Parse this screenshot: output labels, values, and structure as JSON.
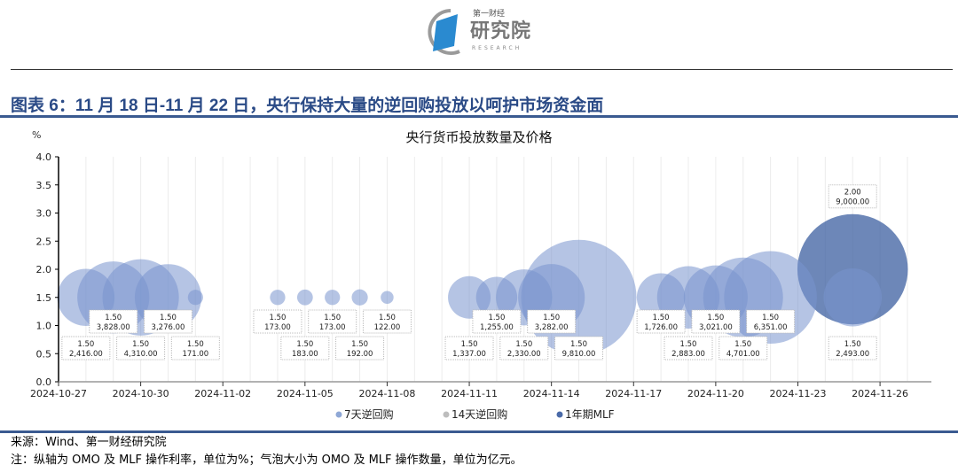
{
  "logo": {
    "top": "第一财经",
    "main": "研究院",
    "sub": "RESEARCH"
  },
  "figure_title": "图表 6：11 月 18 日-11 月 22 日，央行保持大量的逆回购投放以呵护市场资金面",
  "source": "来源：Wind、第一财经研究院",
  "note": "注：纵轴为 OMO 及 MLF 操作利率，单位为%；气泡大小为 OMO 及 MLF 操作数量，单位为亿元。",
  "chart_data": {
    "type": "bubble",
    "title": "央行货币投放数量及价格",
    "ylabel": "%",
    "ylim": [
      0,
      4.0
    ],
    "yticks": [
      "0.0",
      "0.5",
      "1.0",
      "1.5",
      "2.0",
      "2.5",
      "3.0",
      "3.5",
      "4.0"
    ],
    "xlim": [
      "2024-10-27",
      "2024-11-28"
    ],
    "xticks": [
      "2024-10-27",
      "2024-10-30",
      "2024-11-02",
      "2024-11-05",
      "2024-11-08",
      "2024-11-11",
      "2024-11-14",
      "2024-11-17",
      "2024-11-20",
      "2024-11-23",
      "2024-11-26"
    ],
    "grid": "vertical",
    "legend_position": "bottom",
    "series": [
      {
        "name": "7天逆回购",
        "color": "#8fa8d6",
        "points": [
          {
            "x": "2024-10-28",
            "y": 1.5,
            "size": 2416,
            "label": [
              "1.50",
              "2,416.00"
            ]
          },
          {
            "x": "2024-10-29",
            "y": 1.5,
            "size": 3828,
            "label": [
              "1.50",
              "3,828.00"
            ]
          },
          {
            "x": "2024-10-30",
            "y": 1.5,
            "size": 4310,
            "label": [
              "1.50",
              "4,310.00"
            ]
          },
          {
            "x": "2024-10-31",
            "y": 1.5,
            "size": 3276,
            "label": [
              "1.50",
              "3,276.00"
            ]
          },
          {
            "x": "2024-11-01",
            "y": 1.5,
            "size": 171,
            "label": [
              "1.50",
              "171.00"
            ]
          },
          {
            "x": "2024-11-04",
            "y": 1.5,
            "size": 173,
            "label": [
              "1.50",
              "173.00"
            ]
          },
          {
            "x": "2024-11-05",
            "y": 1.5,
            "size": 183,
            "label": [
              "1.50",
              "183.00"
            ]
          },
          {
            "x": "2024-11-06",
            "y": 1.5,
            "size": 173,
            "label": [
              "1.50",
              "173.00"
            ]
          },
          {
            "x": "2024-11-07",
            "y": 1.5,
            "size": 192,
            "label": [
              "1.50",
              "192.00"
            ]
          },
          {
            "x": "2024-11-08",
            "y": 1.5,
            "size": 122,
            "label": [
              "1.50",
              "122.00"
            ]
          },
          {
            "x": "2024-11-11",
            "y": 1.5,
            "size": 1337,
            "label": [
              "1.50",
              "1,337.00"
            ]
          },
          {
            "x": "2024-11-12",
            "y": 1.5,
            "size": 1255,
            "label": [
              "1.50",
              "1,255.00"
            ]
          },
          {
            "x": "2024-11-13",
            "y": 1.5,
            "size": 2330,
            "label": [
              "1.50",
              "2,330.00"
            ]
          },
          {
            "x": "2024-11-14",
            "y": 1.5,
            "size": 3282,
            "label": [
              "1.50",
              "3,282.00"
            ]
          },
          {
            "x": "2024-11-15",
            "y": 1.5,
            "size": 9810,
            "label": [
              "1.50",
              "9,810.00"
            ]
          },
          {
            "x": "2024-11-18",
            "y": 1.5,
            "size": 1726,
            "label": [
              "1.50",
              "1,726.00"
            ]
          },
          {
            "x": "2024-11-19",
            "y": 1.5,
            "size": 2883,
            "label": [
              "1.50",
              "2,883.00"
            ]
          },
          {
            "x": "2024-11-20",
            "y": 1.5,
            "size": 3021,
            "label": [
              "1.50",
              "3,021.00"
            ]
          },
          {
            "x": "2024-11-21",
            "y": 1.5,
            "size": 4701,
            "label": [
              "1.50",
              "4,701.00"
            ]
          },
          {
            "x": "2024-11-22",
            "y": 1.5,
            "size": 6351,
            "label": [
              "1.50",
              "6,351.00"
            ]
          },
          {
            "x": "2024-11-25",
            "y": 1.5,
            "size": 2493,
            "label": [
              "1.50",
              "2,493.00"
            ]
          }
        ]
      },
      {
        "name": "14天逆回购",
        "color": "#bdbdbd",
        "points": []
      },
      {
        "name": "1年期MLF",
        "color": "#4a6aa8",
        "points": [
          {
            "x": "2024-11-25",
            "y": 2.0,
            "size": 9000,
            "label": [
              "2.00",
              "9,000.00"
            ]
          }
        ]
      }
    ]
  }
}
